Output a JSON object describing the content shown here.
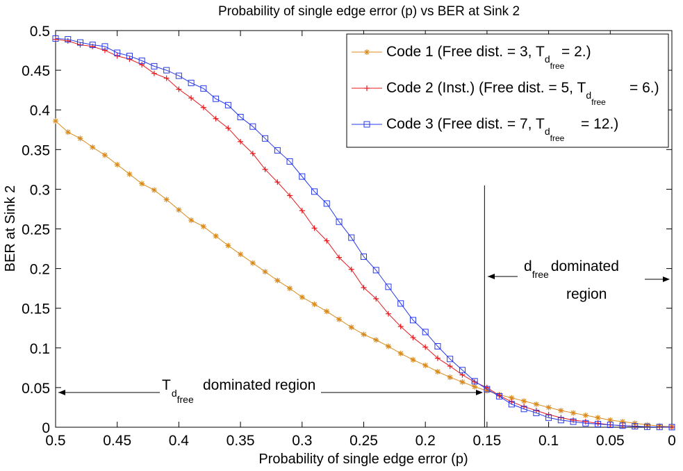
{
  "chart_data": {
    "type": "line",
    "title": "Probability of single edge error (p) vs BER at Sink 2",
    "xlabel": "Probability of single edge error (p)",
    "ylabel": "BER at Sink 2",
    "xlim": [
      0.5,
      0
    ],
    "ylim": [
      0,
      0.5
    ],
    "xticks": [
      "0.5",
      "0.45",
      "0.4",
      "0.35",
      "0.3",
      "0.25",
      "0.2",
      "0.15",
      "0.1",
      "0.05",
      "0"
    ],
    "yticks": [
      "0",
      "0.05",
      "0.1",
      "0.15",
      "0.2",
      "0.25",
      "0.3",
      "0.35",
      "0.4",
      "0.45",
      "0.5"
    ],
    "x": [
      0.5,
      0.49,
      0.48,
      0.47,
      0.46,
      0.45,
      0.44,
      0.43,
      0.42,
      0.41,
      0.4,
      0.39,
      0.38,
      0.37,
      0.36,
      0.35,
      0.34,
      0.33,
      0.32,
      0.31,
      0.3,
      0.29,
      0.28,
      0.27,
      0.26,
      0.25,
      0.24,
      0.23,
      0.22,
      0.21,
      0.2,
      0.19,
      0.18,
      0.17,
      0.16,
      0.15,
      0.14,
      0.13,
      0.12,
      0.11,
      0.1,
      0.09,
      0.08,
      0.07,
      0.06,
      0.05,
      0.04,
      0.03,
      0.02,
      0.01,
      0.0
    ],
    "series": [
      {
        "name": "Code 1",
        "color": "#d98a1a",
        "marker": "asterisk",
        "values": [
          0.386,
          0.372,
          0.364,
          0.353,
          0.343,
          0.331,
          0.319,
          0.307,
          0.299,
          0.287,
          0.274,
          0.261,
          0.253,
          0.241,
          0.229,
          0.218,
          0.207,
          0.196,
          0.185,
          0.175,
          0.164,
          0.155,
          0.146,
          0.136,
          0.126,
          0.117,
          0.11,
          0.102,
          0.093,
          0.085,
          0.078,
          0.07,
          0.063,
          0.057,
          0.051,
          0.046,
          0.041,
          0.037,
          0.033,
          0.029,
          0.025,
          0.021,
          0.018,
          0.015,
          0.012,
          0.009,
          0.007,
          0.005,
          0.003,
          0.0015,
          0.0005
        ]
      },
      {
        "name": "Code 2",
        "color": "#e8181c",
        "marker": "plus",
        "values": [
          0.489,
          0.487,
          0.482,
          0.48,
          0.475,
          0.468,
          0.464,
          0.457,
          0.446,
          0.44,
          0.426,
          0.415,
          0.403,
          0.389,
          0.377,
          0.36,
          0.345,
          0.325,
          0.309,
          0.292,
          0.273,
          0.251,
          0.235,
          0.214,
          0.199,
          0.176,
          0.162,
          0.143,
          0.127,
          0.113,
          0.101,
          0.087,
          0.077,
          0.066,
          0.057,
          0.05,
          0.04,
          0.032,
          0.026,
          0.021,
          0.016,
          0.012,
          0.009,
          0.007,
          0.005,
          0.003,
          0.002,
          0.0012,
          0.0006,
          0.0003,
          0.0001
        ]
      },
      {
        "name": "Code 3",
        "color": "#2638e8",
        "marker": "square",
        "values": [
          0.49,
          0.489,
          0.485,
          0.482,
          0.48,
          0.472,
          0.468,
          0.462,
          0.455,
          0.45,
          0.443,
          0.434,
          0.427,
          0.414,
          0.406,
          0.391,
          0.379,
          0.364,
          0.349,
          0.335,
          0.316,
          0.297,
          0.282,
          0.259,
          0.239,
          0.215,
          0.198,
          0.177,
          0.156,
          0.135,
          0.12,
          0.102,
          0.086,
          0.072,
          0.058,
          0.048,
          0.039,
          0.029,
          0.023,
          0.018,
          0.012,
          0.009,
          0.007,
          0.005,
          0.004,
          0.003,
          0.002,
          0.0012,
          0.0006,
          0.0003,
          0.0001
        ]
      }
    ],
    "legend": {
      "position": "top-right",
      "entries": [
        {
          "pre": "Code 1 (Free dist. = 3, T",
          "sub1": "d",
          "sub2": "free",
          "post": "= 2.)"
        },
        {
          "pre": "Code 2 (Inst.) (Free dist. = 5, T",
          "sub1": "d",
          "sub2": "free",
          "post": "= 6.)"
        },
        {
          "pre": "Code 3 (Free dist. = 7, T",
          "sub1": "d",
          "sub2": "free",
          "post": "= 12.)"
        }
      ]
    },
    "vline_x": 0.152,
    "annotations": {
      "left_region": {
        "main": "T",
        "sub1": "d",
        "sub2": "free",
        "post": "dominated region"
      },
      "right_region": {
        "line1_main": "d",
        "line1_sub": "free",
        "line1_post": "dominated",
        "line2": "region"
      }
    }
  }
}
